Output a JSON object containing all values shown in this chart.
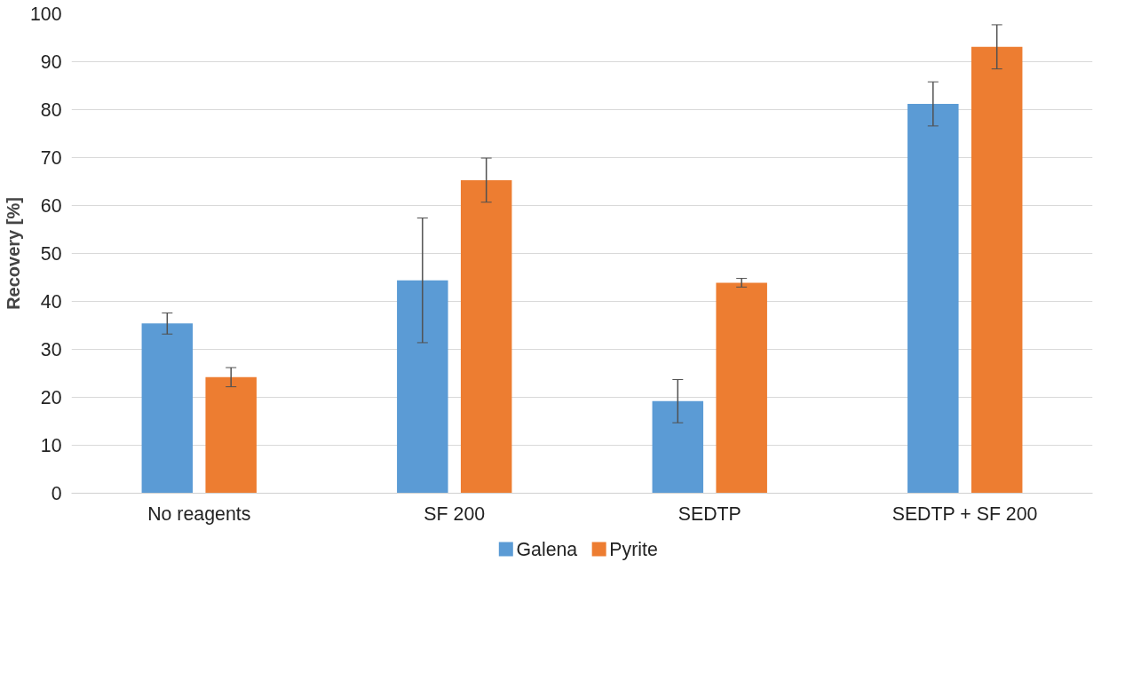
{
  "chart_data": {
    "type": "bar",
    "ylabel": "Recovery [%]",
    "categories": [
      "No reagents",
      "SF 200",
      "SEDTP",
      "SEDTP + SF 200"
    ],
    "series": [
      {
        "name": "Galena",
        "color": "#5b9bd5",
        "values": [
          35.4,
          44.4,
          19.2,
          81.2
        ],
        "errors": [
          2.2,
          13,
          4.5,
          4.6
        ]
      },
      {
        "name": "Pyrite",
        "color": "#ed7d31",
        "values": [
          24.2,
          65.3,
          43.9,
          93.1
        ],
        "errors": [
          2,
          4.6,
          0.9,
          4.6
        ]
      }
    ],
    "ylim": [
      0,
      100
    ],
    "yticks": [
      0,
      10,
      20,
      30,
      40,
      50,
      60,
      70,
      80,
      90,
      100
    ],
    "grid": "y",
    "legend": "bottom"
  }
}
